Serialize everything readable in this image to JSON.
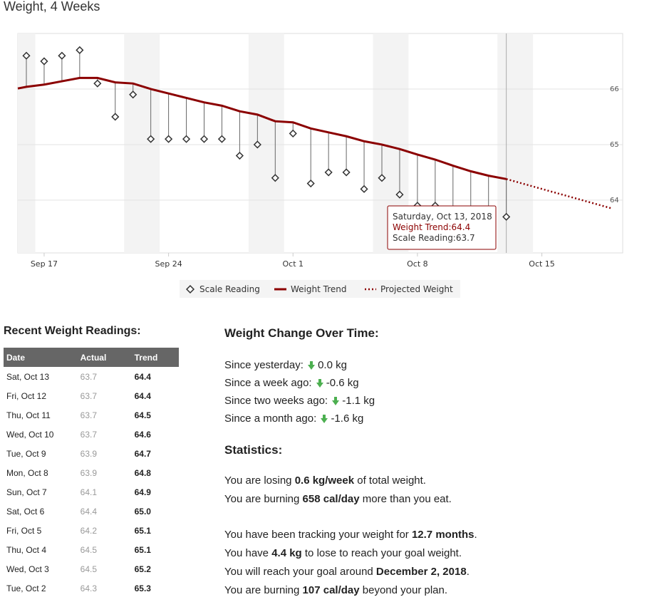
{
  "title": "Weight, 4 Weeks",
  "chart_data": {
    "type": "line",
    "title": "Weight, 4 Weeks",
    "x_tick_labels": [
      "Sep 17",
      "Sep 24",
      "Oct 1",
      "Oct 8",
      "Oct 15"
    ],
    "y_ticks": [
      64,
      65,
      66
    ],
    "ylim": [
      63.05,
      67.0
    ],
    "x_days_range": [
      "Sep 16",
      "Oct 20"
    ],
    "grid": true,
    "legend_position": "bottom-center",
    "scale_reading": {
      "name": "Scale Reading",
      "marker": "diamond",
      "x": [
        "Sep 16",
        "Sep 17",
        "Sep 18",
        "Sep 19",
        "Sep 20",
        "Sep 21",
        "Sep 22",
        "Sep 23",
        "Sep 24",
        "Sep 25",
        "Sep 26",
        "Sep 27",
        "Sep 28",
        "Sep 29",
        "Sep 30",
        "Oct 1",
        "Oct 2",
        "Oct 3",
        "Oct 4",
        "Oct 5",
        "Oct 6",
        "Oct 7",
        "Oct 8",
        "Oct 9",
        "Oct 10",
        "Oct 11",
        "Oct 12",
        "Oct 13"
      ],
      "values": [
        66.6,
        66.5,
        66.6,
        66.7,
        66.1,
        65.5,
        65.9,
        65.1,
        65.1,
        65.1,
        65.1,
        65.1,
        64.8,
        65.0,
        64.4,
        65.2,
        64.3,
        64.5,
        64.5,
        64.2,
        64.4,
        64.1,
        63.9,
        63.9,
        63.7,
        63.7,
        63.7,
        63.7
      ]
    },
    "weight_trend": {
      "name": "Weight Trend",
      "color": "#8b0000",
      "x": [
        "Sep 16",
        "Sep 17",
        "Sep 18",
        "Sep 19",
        "Sep 20",
        "Sep 21",
        "Sep 22",
        "Sep 23",
        "Sep 24",
        "Sep 25",
        "Sep 26",
        "Sep 27",
        "Sep 28",
        "Sep 29",
        "Sep 30",
        "Oct 1",
        "Oct 2",
        "Oct 3",
        "Oct 4",
        "Oct 5",
        "Oct 6",
        "Oct 7",
        "Oct 8",
        "Oct 9",
        "Oct 10",
        "Oct 11",
        "Oct 12",
        "Oct 13"
      ],
      "values": [
        66.04,
        66.08,
        66.14,
        66.2,
        66.2,
        66.12,
        66.1,
        66.0,
        65.92,
        65.84,
        65.76,
        65.7,
        65.6,
        65.54,
        65.42,
        65.4,
        65.29,
        65.22,
        65.15,
        65.06,
        65.0,
        64.92,
        64.82,
        64.73,
        64.62,
        64.52,
        64.44,
        64.38
      ]
    },
    "projected_weight": {
      "name": "Projected Weight",
      "color": "#8b0000",
      "style": "dotted",
      "x": [
        "Oct 13",
        "Oct 19"
      ],
      "values": [
        64.38,
        63.85
      ]
    },
    "tooltip": {
      "date": "Saturday, Oct 13, 2018",
      "trend_label": "Weight Trend:",
      "trend_value": "64.4",
      "scale_label": "Scale Reading:",
      "scale_value": "63.7"
    }
  },
  "legend": {
    "scale": "Scale Reading",
    "trend": "Weight Trend",
    "projected": "Projected Weight"
  },
  "recent": {
    "title": "Recent Weight Readings:",
    "headers": {
      "date": "Date",
      "actual": "Actual",
      "trend": "Trend"
    },
    "rows": [
      {
        "date": "Sat, Oct 13",
        "actual": "63.7",
        "trend": "64.4"
      },
      {
        "date": "Fri, Oct 12",
        "actual": "63.7",
        "trend": "64.4"
      },
      {
        "date": "Thu, Oct 11",
        "actual": "63.7",
        "trend": "64.5"
      },
      {
        "date": "Wed, Oct 10",
        "actual": "63.7",
        "trend": "64.6"
      },
      {
        "date": "Tue, Oct 9",
        "actual": "63.9",
        "trend": "64.7"
      },
      {
        "date": "Mon, Oct 8",
        "actual": "63.9",
        "trend": "64.8"
      },
      {
        "date": "Sun, Oct 7",
        "actual": "64.1",
        "trend": "64.9"
      },
      {
        "date": "Sat, Oct 6",
        "actual": "64.4",
        "trend": "65.0"
      },
      {
        "date": "Fri, Oct 5",
        "actual": "64.2",
        "trend": "65.1"
      },
      {
        "date": "Thu, Oct 4",
        "actual": "64.5",
        "trend": "65.1"
      },
      {
        "date": "Wed, Oct 3",
        "actual": "64.5",
        "trend": "65.2"
      },
      {
        "date": "Tue, Oct 2",
        "actual": "64.3",
        "trend": "65.3"
      }
    ]
  },
  "change": {
    "title": "Weight Change Over Time:",
    "rows": [
      {
        "label": "Since yesterday:",
        "value": "0.0 kg"
      },
      {
        "label": "Since a week ago:",
        "value": "-0.6 kg"
      },
      {
        "label": "Since two weeks ago:",
        "value": "-1.1 kg"
      },
      {
        "label": "Since a month ago:",
        "value": "-1.6 kg"
      }
    ],
    "arrow_color": "#4caf50"
  },
  "stats": {
    "title": "Statistics:",
    "line1": {
      "pre": "You are losing ",
      "bold": "0.6 kg/week",
      "post": " of total weight."
    },
    "line2": {
      "pre": "You are burning ",
      "bold": "658 cal/day",
      "post": " more than you eat."
    },
    "line3": {
      "pre": "You have been tracking your weight for ",
      "bold": "12.7 months",
      "post": "."
    },
    "line4": {
      "pre": "You have ",
      "bold": "4.4 kg",
      "post": " to lose to reach your goal weight."
    },
    "line5": {
      "pre": "You will reach your goal around ",
      "bold": "December 2, 2018",
      "post": "."
    },
    "line6": {
      "pre": "You are burning ",
      "bold": "107 cal/day",
      "post": " beyond your plan."
    }
  }
}
